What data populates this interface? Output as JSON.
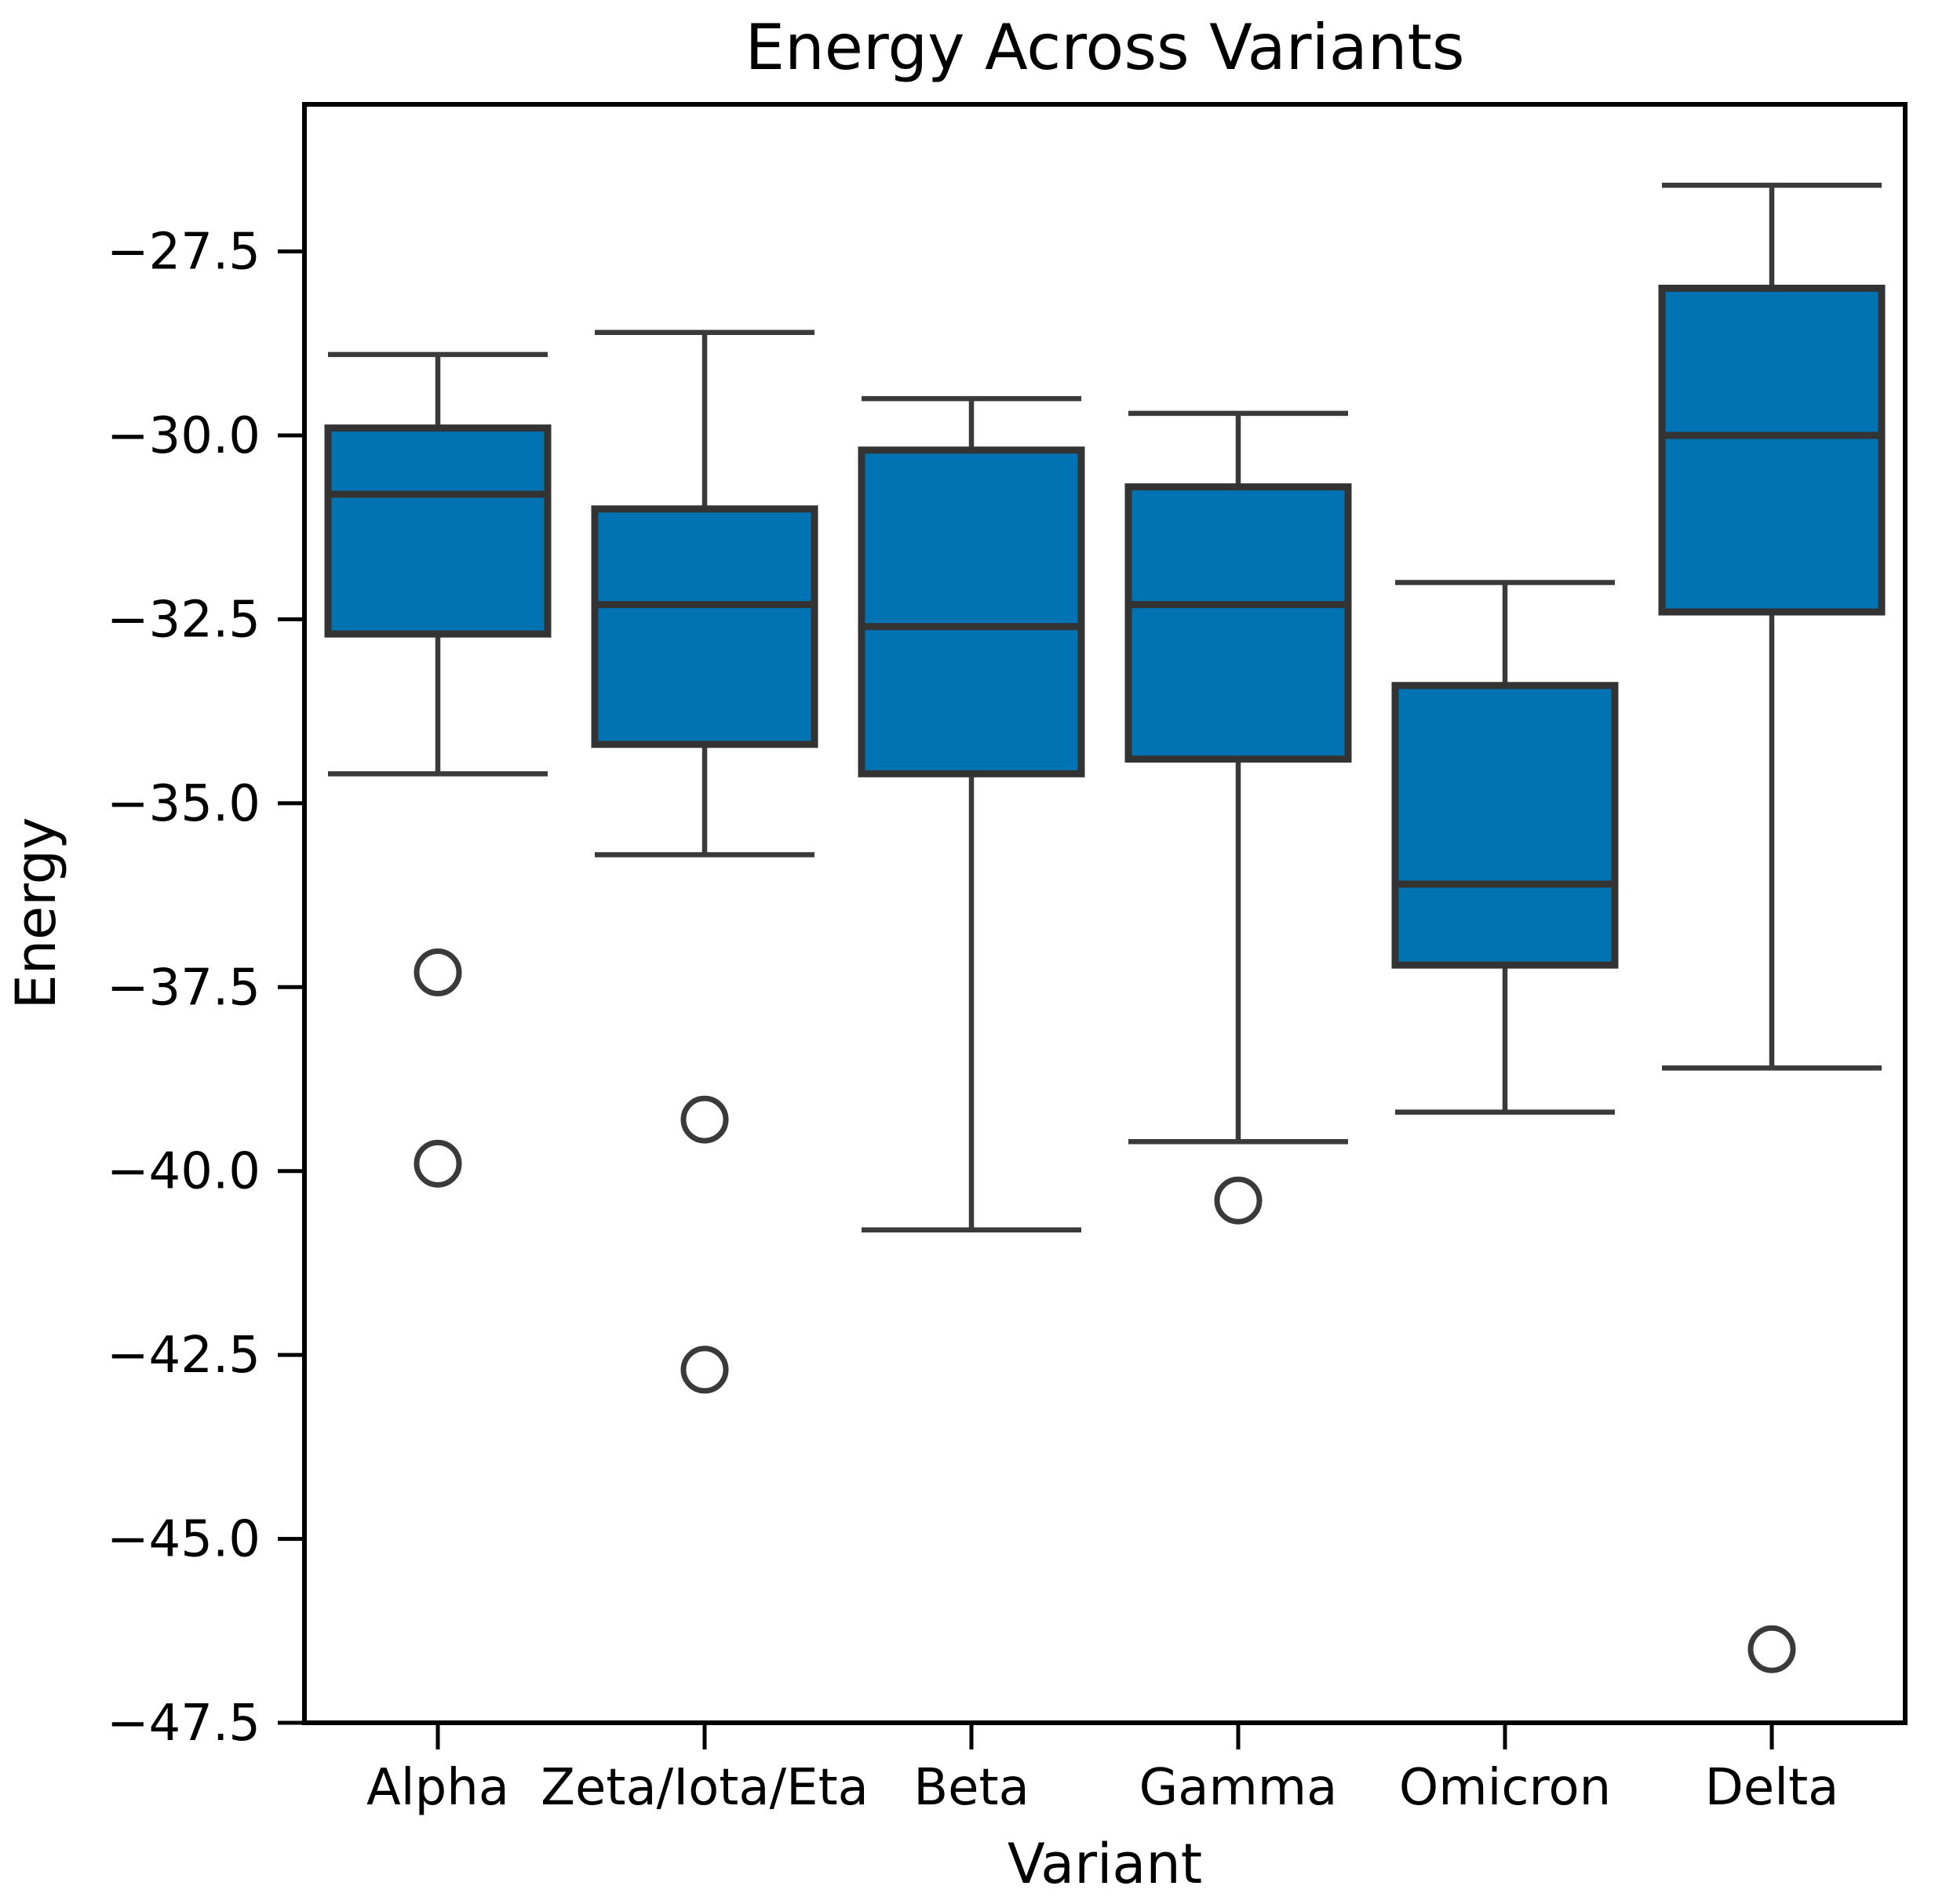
{
  "chart_data": {
    "type": "box",
    "title": "Energy Across Variants",
    "xlabel": "Variant",
    "ylabel": "Energy",
    "ylim": [
      -47.5,
      -25.5
    ],
    "yticks": [
      -27.5,
      -30.0,
      -32.5,
      -35.0,
      -37.5,
      -40.0,
      -42.5,
      -45.0,
      -47.5
    ],
    "categories": [
      "Alpha",
      "Zeta/Iota/Eta",
      "Beta",
      "Gamma",
      "Omicron",
      "Delta"
    ],
    "legend": "none",
    "grid": false,
    "box_fill_color": "#0173b2",
    "box_edge_color": "#333333",
    "whisker_color": "#3a3a3a",
    "outlier_edge_color": "#3a3a3a",
    "series": [
      {
        "name": "Alpha",
        "whisker_low": -34.6,
        "q1": -32.7,
        "median": -30.8,
        "q3": -29.9,
        "whisker_high": -28.9,
        "outliers": [
          -37.3,
          -39.9
        ]
      },
      {
        "name": "Zeta/Iota/Eta",
        "whisker_low": -35.7,
        "q1": -34.2,
        "median": -32.3,
        "q3": -31.0,
        "whisker_high": -28.6,
        "outliers": [
          -39.3,
          -42.7
        ]
      },
      {
        "name": "Beta",
        "whisker_low": -40.8,
        "q1": -34.6,
        "median": -32.6,
        "q3": -30.2,
        "whisker_high": -29.5,
        "outliers": []
      },
      {
        "name": "Gamma",
        "whisker_low": -39.6,
        "q1": -34.4,
        "median": -32.3,
        "q3": -30.7,
        "whisker_high": -29.7,
        "outliers": [
          -40.4
        ]
      },
      {
        "name": "Omicron",
        "whisker_low": -39.2,
        "q1": -37.2,
        "median": -36.1,
        "q3": -33.4,
        "whisker_high": -32.0,
        "outliers": []
      },
      {
        "name": "Delta",
        "whisker_low": -38.6,
        "q1": -32.4,
        "median": -30.0,
        "q3": -28.0,
        "whisker_high": -26.6,
        "outliers": [
          -46.5
        ]
      }
    ]
  }
}
